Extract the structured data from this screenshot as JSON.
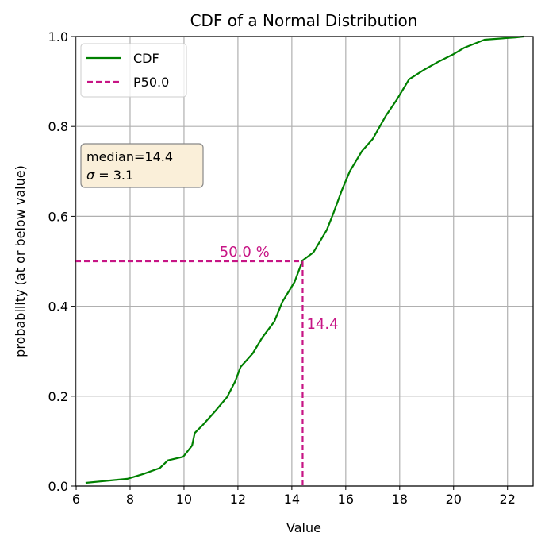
{
  "chart_data": {
    "type": "line",
    "title": "CDF of a Normal Distribution",
    "xlabel": "Value",
    "ylabel": "probability (at or below value)",
    "xlim": [
      5.97,
      22.95
    ],
    "ylim": [
      0.0,
      1.0
    ],
    "xticks": [
      6,
      8,
      10,
      12,
      14,
      16,
      18,
      20,
      22
    ],
    "yticks": [
      0.0,
      0.2,
      0.4,
      0.6,
      0.8,
      1.0
    ],
    "ytick_labels": [
      "0.0",
      "0.2",
      "0.4",
      "0.6",
      "0.8",
      "1.0"
    ],
    "grid": true,
    "legend": {
      "placement": "top-left",
      "entries": [
        {
          "label": "CDF",
          "style": "solid",
          "color": "#008000"
        },
        {
          "label": "P50.0",
          "style": "dashed",
          "color": "#c71585"
        }
      ]
    },
    "series": [
      {
        "name": "CDF",
        "color": "#008000",
        "x": [
          6.35,
          7.9,
          8.5,
          9.1,
          9.4,
          9.97,
          10.3,
          10.4,
          10.7,
          11.15,
          11.6,
          11.9,
          12.1,
          12.55,
          12.9,
          13.35,
          13.65,
          14.1,
          14.4,
          14.8,
          15.3,
          15.55,
          15.85,
          16.15,
          16.6,
          17.0,
          17.5,
          17.9,
          18.35,
          18.9,
          19.4,
          20.0,
          20.4,
          21.15,
          22.3,
          22.6
        ],
        "y": [
          0.007,
          0.016,
          0.027,
          0.04,
          0.057,
          0.065,
          0.09,
          0.118,
          0.136,
          0.166,
          0.198,
          0.233,
          0.265,
          0.295,
          0.33,
          0.366,
          0.41,
          0.454,
          0.502,
          0.52,
          0.57,
          0.608,
          0.657,
          0.7,
          0.745,
          0.772,
          0.825,
          0.86,
          0.905,
          0.926,
          0.943,
          0.961,
          0.975,
          0.993,
          0.998,
          1.0
        ]
      }
    ],
    "percentile_marker": {
      "x": 14.4,
      "y": 0.5,
      "color": "#c71585",
      "x_label": "14.4",
      "y_label": "50.0 %"
    },
    "annotation_box": {
      "line1": "median=14.4",
      "line2_symbol": "σ",
      "line2_value": " = 3.1"
    }
  }
}
